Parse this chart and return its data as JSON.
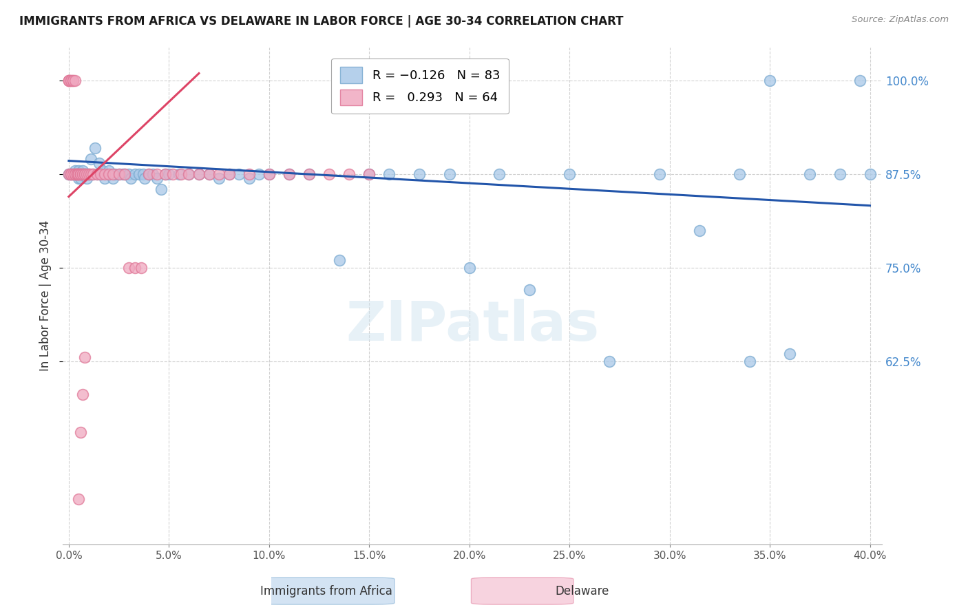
{
  "title": "IMMIGRANTS FROM AFRICA VS DELAWARE IN LABOR FORCE | AGE 30-34 CORRELATION CHART",
  "source": "Source: ZipAtlas.com",
  "ylabel": "In Labor Force | Age 30-34",
  "watermark": "ZIPatlas",
  "blue_color": "#a8c8e8",
  "blue_edge_color": "#7aaad0",
  "pink_color": "#f0a8c0",
  "pink_edge_color": "#e07898",
  "blue_line_color": "#2255aa",
  "pink_line_color": "#dd4466",
  "xlim": [
    0.0,
    0.4
  ],
  "ylim": [
    0.38,
    1.045
  ],
  "yticks": [
    0.625,
    0.75,
    0.875,
    1.0
  ],
  "xticks": [
    0.0,
    0.05,
    0.1,
    0.15,
    0.2,
    0.25,
    0.3,
    0.35,
    0.4
  ],
  "blue_x": [
    0.0,
    0.0,
    0.001,
    0.001,
    0.002,
    0.002,
    0.003,
    0.003,
    0.003,
    0.004,
    0.004,
    0.005,
    0.005,
    0.005,
    0.006,
    0.006,
    0.006,
    0.007,
    0.007,
    0.008,
    0.008,
    0.009,
    0.009,
    0.01,
    0.01,
    0.011,
    0.012,
    0.013,
    0.014,
    0.015,
    0.016,
    0.017,
    0.018,
    0.02,
    0.022,
    0.023,
    0.025,
    0.027,
    0.028,
    0.03,
    0.031,
    0.033,
    0.035,
    0.037,
    0.038,
    0.04,
    0.042,
    0.044,
    0.046,
    0.048,
    0.05,
    0.055,
    0.06,
    0.065,
    0.07,
    0.075,
    0.08,
    0.085,
    0.09,
    0.095,
    0.1,
    0.11,
    0.12,
    0.135,
    0.15,
    0.16,
    0.175,
    0.19,
    0.2,
    0.215,
    0.23,
    0.25,
    0.27,
    0.295,
    0.315,
    0.335,
    0.35,
    0.37,
    0.385,
    0.395,
    0.4,
    0.34,
    0.36
  ],
  "blue_y": [
    0.875,
    0.875,
    0.875,
    0.875,
    0.875,
    0.875,
    0.875,
    0.88,
    0.875,
    0.875,
    0.875,
    0.88,
    0.875,
    0.87,
    0.875,
    0.875,
    0.87,
    0.88,
    0.875,
    0.875,
    0.875,
    0.875,
    0.87,
    0.875,
    0.875,
    0.895,
    0.875,
    0.91,
    0.875,
    0.89,
    0.875,
    0.88,
    0.87,
    0.88,
    0.87,
    0.875,
    0.875,
    0.875,
    0.875,
    0.875,
    0.87,
    0.875,
    0.875,
    0.875,
    0.87,
    0.875,
    0.875,
    0.87,
    0.855,
    0.875,
    0.875,
    0.875,
    0.875,
    0.875,
    0.875,
    0.87,
    0.875,
    0.875,
    0.87,
    0.875,
    0.875,
    0.875,
    0.875,
    0.76,
    0.875,
    0.875,
    0.875,
    0.875,
    0.75,
    0.875,
    0.72,
    0.875,
    0.625,
    0.875,
    0.8,
    0.875,
    1.0,
    0.875,
    0.875,
    1.0,
    0.875,
    0.625,
    0.635
  ],
  "pink_x": [
    0.0,
    0.0,
    0.0,
    0.0,
    0.0,
    0.001,
    0.001,
    0.001,
    0.001,
    0.002,
    0.002,
    0.002,
    0.003,
    0.003,
    0.003,
    0.003,
    0.004,
    0.004,
    0.004,
    0.005,
    0.005,
    0.005,
    0.006,
    0.006,
    0.006,
    0.007,
    0.007,
    0.008,
    0.008,
    0.009,
    0.01,
    0.011,
    0.012,
    0.014,
    0.016,
    0.018,
    0.02,
    0.022,
    0.025,
    0.028,
    0.03,
    0.033,
    0.036,
    0.04,
    0.044,
    0.048,
    0.052,
    0.056,
    0.06,
    0.065,
    0.07,
    0.075,
    0.08,
    0.09,
    0.1,
    0.11,
    0.12,
    0.13,
    0.14,
    0.15,
    0.005,
    0.006,
    0.007,
    0.008
  ],
  "pink_y": [
    1.0,
    1.0,
    1.0,
    1.0,
    0.875,
    1.0,
    1.0,
    0.875,
    0.875,
    1.0,
    1.0,
    0.875,
    1.0,
    0.875,
    0.875,
    0.875,
    0.875,
    0.875,
    0.875,
    0.875,
    0.875,
    0.875,
    0.875,
    0.875,
    0.875,
    0.875,
    0.875,
    0.875,
    0.875,
    0.875,
    0.875,
    0.875,
    0.875,
    0.875,
    0.875,
    0.875,
    0.875,
    0.875,
    0.875,
    0.875,
    0.75,
    0.75,
    0.75,
    0.875,
    0.875,
    0.875,
    0.875,
    0.875,
    0.875,
    0.875,
    0.875,
    0.875,
    0.875,
    0.875,
    0.875,
    0.875,
    0.875,
    0.875,
    0.875,
    0.875,
    0.44,
    0.53,
    0.58,
    0.63
  ],
  "blue_trend_x": [
    0.0,
    0.4
  ],
  "blue_trend_y": [
    0.893,
    0.833
  ],
  "pink_trend_x": [
    0.0,
    0.065
  ],
  "pink_trend_y": [
    0.845,
    1.01
  ]
}
